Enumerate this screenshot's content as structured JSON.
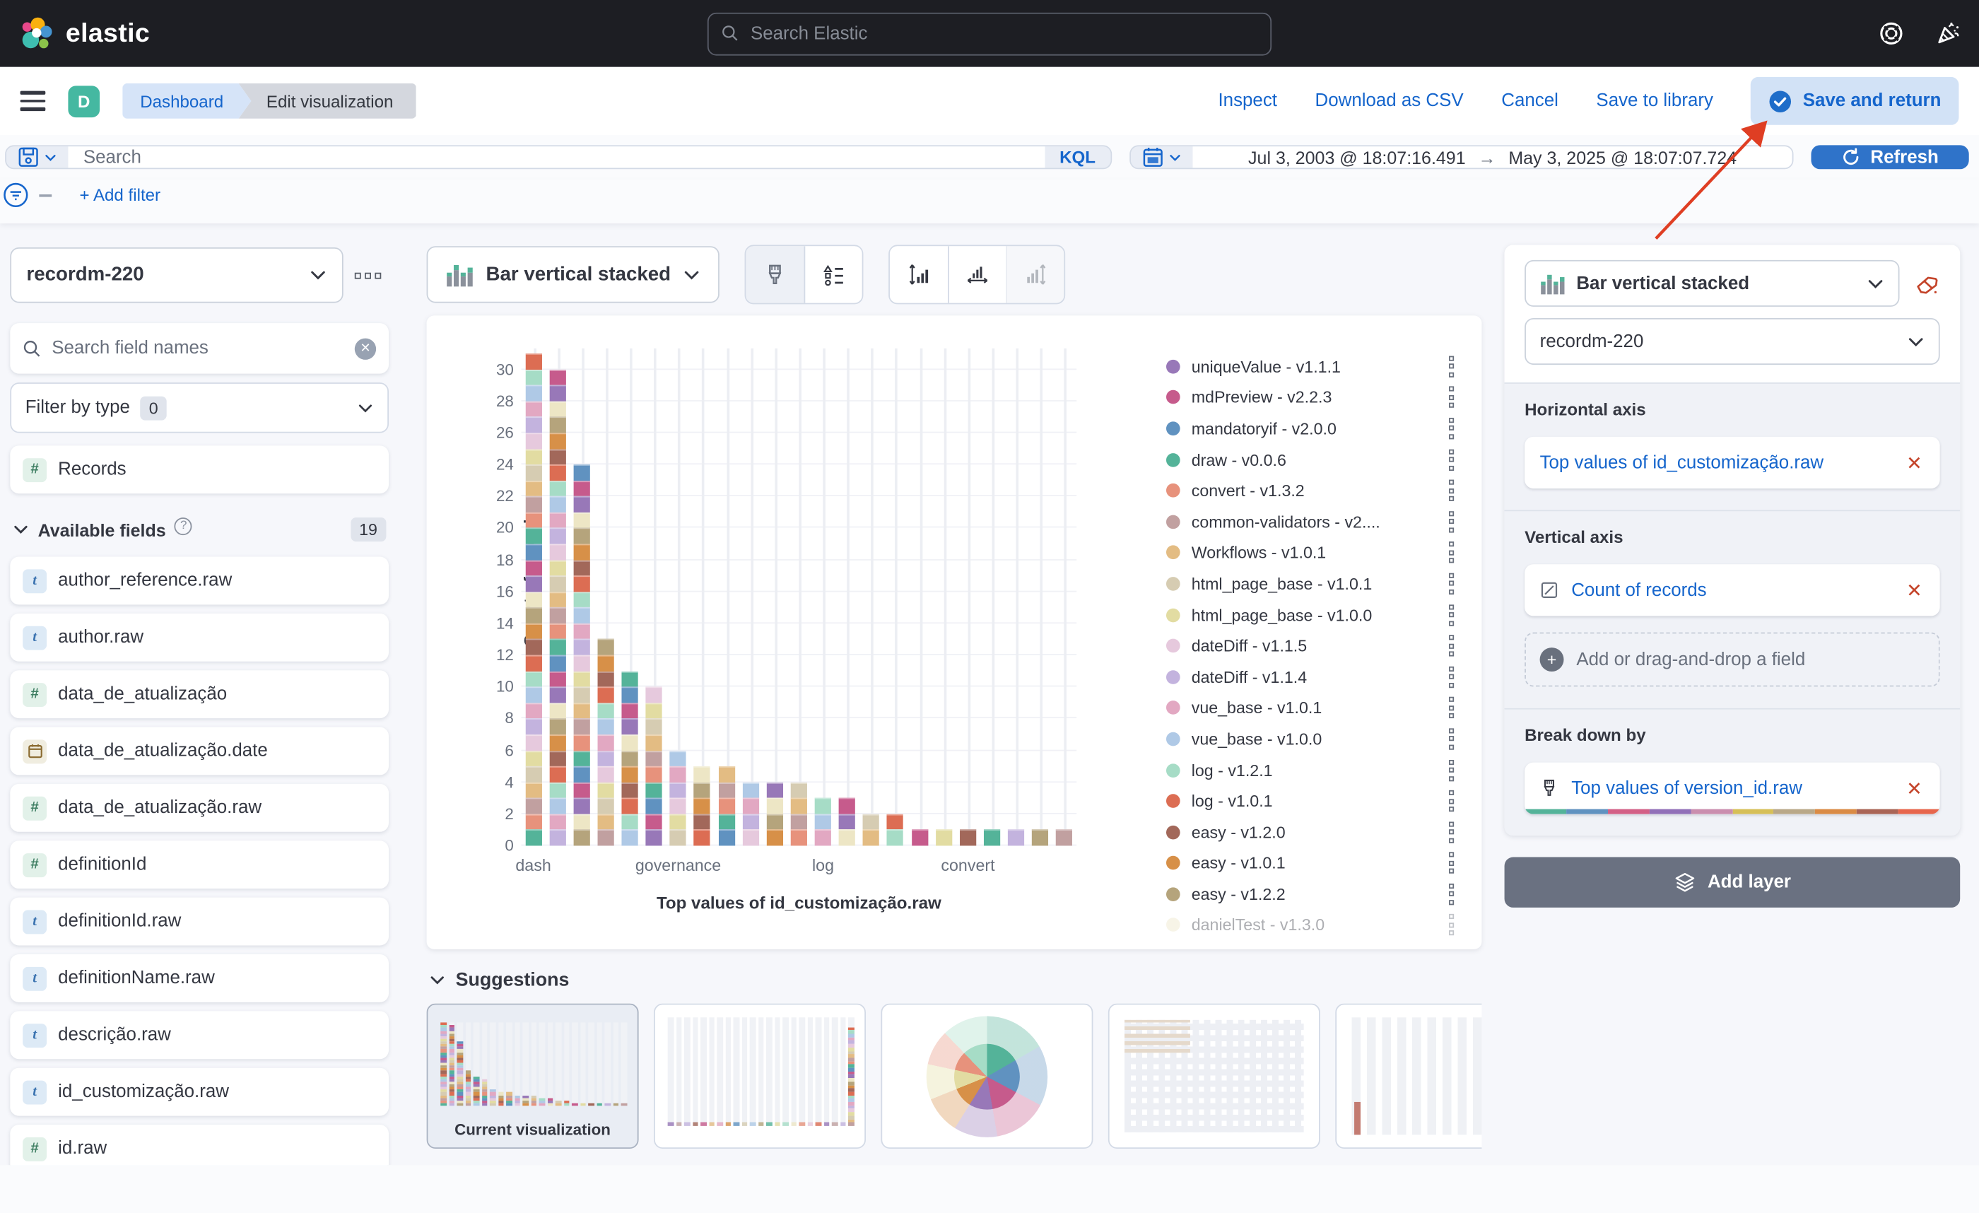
{
  "topbar": {
    "brand": "elastic",
    "search_placeholder": "Search Elastic",
    "icons": [
      "help-lifering-icon",
      "news-party-popper-icon"
    ]
  },
  "nav": {
    "avatar": "D",
    "breadcrumbs": [
      "Dashboard",
      "Edit visualization"
    ],
    "actions": [
      "Inspect",
      "Download as CSV",
      "Cancel",
      "Save to library"
    ],
    "primary_action": "Save and return"
  },
  "querybar": {
    "search_placeholder": "Search",
    "language": "KQL",
    "date_from": "Jul 3, 2003 @ 18:07:16.491",
    "date_to": "May 3, 2025 @ 18:07:07.724",
    "refresh_label": "Refresh",
    "add_filter_label": "+ Add filter"
  },
  "fields_panel": {
    "index_name": "recordm-220",
    "search_placeholder": "Search field names",
    "filter_by_type_label": "Filter by type",
    "filter_count": "0",
    "records_label": "Records",
    "available_header": "Available fields",
    "available_count": "19",
    "fields": [
      {
        "name": "author_reference.raw",
        "type": "text"
      },
      {
        "name": "author.raw",
        "type": "text"
      },
      {
        "name": "data_de_atualização",
        "type": "number"
      },
      {
        "name": "data_de_atualização.date",
        "type": "date"
      },
      {
        "name": "data_de_atualização.raw",
        "type": "number"
      },
      {
        "name": "definitionId",
        "type": "number"
      },
      {
        "name": "definitionId.raw",
        "type": "text"
      },
      {
        "name": "definitionName.raw",
        "type": "text"
      },
      {
        "name": "descrição.raw",
        "type": "text"
      },
      {
        "name": "id_customização.raw",
        "type": "text"
      },
      {
        "name": "id.raw",
        "type": "number"
      }
    ]
  },
  "toolbar": {
    "chart_switcher": "Bar vertical stacked",
    "icon_buttons": [
      "brush-icon",
      "legend-settings-icon",
      "axis-left-icon",
      "axis-bottom-icon",
      "axis-right-icon"
    ]
  },
  "chart_data": {
    "type": "bar",
    "stacked": true,
    "ylabel": "Count of records",
    "xlabel": "Top values of id_customização.raw",
    "ylim": [
      0,
      31
    ],
    "y_ticks": [
      0,
      2,
      4,
      6,
      8,
      10,
      12,
      14,
      16,
      18,
      20,
      22,
      24,
      26,
      28,
      30
    ],
    "x_tick_labels": [
      "dash",
      "governance",
      "log",
      "convert"
    ],
    "x_tick_bar_indices": [
      0,
      6,
      12,
      18
    ],
    "bar_totals": [
      31,
      30,
      24,
      13,
      11,
      10,
      6,
      5,
      5,
      4,
      4,
      4,
      3,
      3,
      2,
      2,
      1,
      1,
      1,
      1,
      1,
      1,
      1
    ],
    "series": [
      {
        "name": "uniqueValue - v1.1.1",
        "color": "#9878B8"
      },
      {
        "name": "mdPreview - v2.2.3",
        "color": "#C65B8C"
      },
      {
        "name": "mandatoryif - v2.0.0",
        "color": "#6092C0"
      },
      {
        "name": "draw - v0.0.6",
        "color": "#54B399"
      },
      {
        "name": "convert - v1.3.2",
        "color": "#E7927C"
      },
      {
        "name": "common-validators - v2....",
        "color": "#C1A0A0"
      },
      {
        "name": "Workflows - v1.0.1",
        "color": "#E3BC83"
      },
      {
        "name": "html_page_base - v1.0.1",
        "color": "#D6CCB2"
      },
      {
        "name": "html_page_base - v1.0.0",
        "color": "#E2DCA2"
      },
      {
        "name": "dateDiff - v1.1.5",
        "color": "#E6C9DD"
      },
      {
        "name": "dateDiff - v1.1.4",
        "color": "#C3B3DE"
      },
      {
        "name": "vue_base - v1.0.1",
        "color": "#E2A8C2"
      },
      {
        "name": "vue_base - v1.0.0",
        "color": "#AFC9E6"
      },
      {
        "name": "log - v1.2.1",
        "color": "#A6DCC6"
      },
      {
        "name": "log - v1.0.1",
        "color": "#DC6D53"
      },
      {
        "name": "easy - v1.2.0",
        "color": "#A2685A"
      },
      {
        "name": "easy - v1.0.1",
        "color": "#D79048"
      },
      {
        "name": "easy - v1.2.2",
        "color": "#B5A47C"
      },
      {
        "name": "danielTest - v1.3.0",
        "color": "#EDE6C5"
      }
    ]
  },
  "suggestions": {
    "header": "Suggestions",
    "current_label": "Current visualization"
  },
  "config_panel": {
    "chart_type": "Bar vertical stacked",
    "data_view": "recordm-220",
    "horizontal_axis_title": "Horizontal axis",
    "horizontal_axis_value": "Top values of id_customização.raw",
    "vertical_axis_title": "Vertical axis",
    "vertical_axis_value": "Count of records",
    "drop_placeholder": "Add or drag-and-drop a field",
    "breakdown_title": "Break down by",
    "breakdown_value": "Top values of version_id.raw",
    "rainbow_colors": [
      "#54B399",
      "#6092C0",
      "#D36086",
      "#9170B8",
      "#CA8EAE",
      "#D6BF57",
      "#B9A888",
      "#DA8B45",
      "#AA6556",
      "#E7664C"
    ],
    "add_layer_label": "Add layer"
  },
  "annotation": {
    "arrow_color": "#DF3E23"
  }
}
